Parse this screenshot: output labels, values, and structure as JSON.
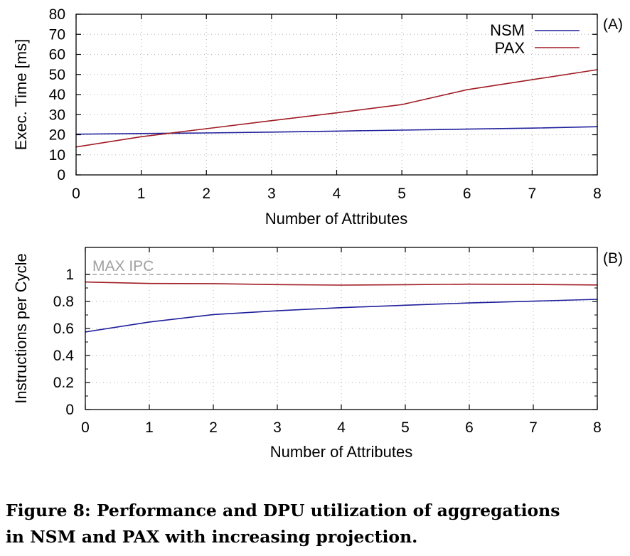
{
  "chart_data": [
    {
      "type": "line",
      "panel_label": "(A)",
      "xlabel": "Number of Attributes",
      "ylabel": "Exec. Time [ms]",
      "x": [
        0,
        1,
        2,
        3,
        4,
        5,
        6,
        7,
        8
      ],
      "xlim": [
        0,
        8
      ],
      "ylim": [
        0,
        80
      ],
      "xticks": [
        "0",
        "1",
        "2",
        "3",
        "4",
        "5",
        "6",
        "7",
        "8"
      ],
      "yticks": [
        "0",
        "10",
        "20",
        "30",
        "40",
        "50",
        "60",
        "70",
        "80"
      ],
      "grid": true,
      "legend_position": "top-right",
      "series": [
        {
          "name": "NSM",
          "color": "#1f1f9c",
          "values": [
            20.3,
            20.6,
            20.9,
            21.3,
            21.8,
            22.3,
            22.8,
            23.3,
            24.0
          ]
        },
        {
          "name": "PAX",
          "color": "#a01c24",
          "values": [
            13.9,
            19.0,
            23.0,
            27.0,
            30.9,
            35.0,
            42.4,
            47.4,
            52.4
          ]
        }
      ]
    },
    {
      "type": "line",
      "panel_label": "(B)",
      "xlabel": "Number of Attributes",
      "ylabel": "Instructions per Cycle",
      "x": [
        0,
        1,
        2,
        3,
        4,
        5,
        6,
        7,
        8
      ],
      "xlim": [
        0,
        8
      ],
      "ylim": [
        0,
        1.2
      ],
      "xticks": [
        "0",
        "1",
        "2",
        "3",
        "4",
        "5",
        "6",
        "7",
        "8"
      ],
      "yticks": [
        "0",
        "0.2",
        "0.4",
        "0.6",
        "0.8",
        "1"
      ],
      "grid": true,
      "reference_line": {
        "label": "MAX IPC",
        "value": 1.0,
        "color": "#a0a0a0"
      },
      "series": [
        {
          "color": "#1f1f9c",
          "values": [
            0.574,
            0.648,
            0.703,
            0.731,
            0.754,
            0.772,
            0.789,
            0.802,
            0.816
          ]
        },
        {
          "color": "#a01c24",
          "values": [
            0.944,
            0.933,
            0.932,
            0.925,
            0.921,
            0.924,
            0.928,
            0.926,
            0.922
          ]
        }
      ]
    }
  ],
  "caption": {
    "line1": "Figure 8: Performance and DPU utilization of aggregations",
    "line2": "in NSM and PAX with increasing projection."
  }
}
